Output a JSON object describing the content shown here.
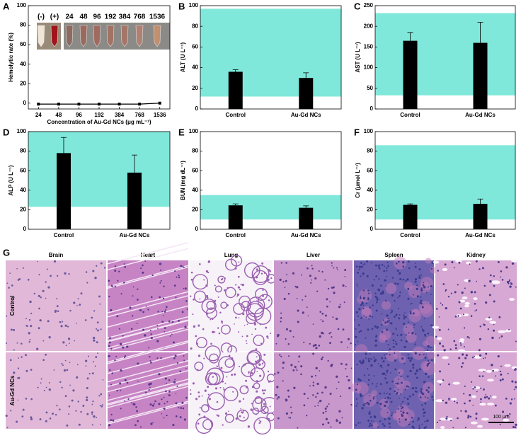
{
  "chart_data": [
    {
      "panel": "A",
      "type": "line",
      "ylabel": "Hemolytic rate (%)",
      "xlabel": "Concentration of Au-Gd NCs (μg mL⁻¹)",
      "categories": [
        "24",
        "48",
        "96",
        "192",
        "384",
        "768",
        "1536"
      ],
      "values": [
        -1,
        -1,
        -1,
        -1,
        -1,
        -1,
        0
      ],
      "color": "#000000",
      "ylim": [
        -6,
        100
      ],
      "yticks": [
        0,
        20,
        40,
        60,
        80,
        100
      ],
      "inset_labels": [
        "(-)",
        "(+)",
        "24",
        "48",
        "96",
        "192",
        "384",
        "768",
        "1536"
      ]
    },
    {
      "panel": "B",
      "type": "bar",
      "ylabel": "ALT (U L⁻¹)",
      "categories": [
        "Control",
        "Au-Gd NCs"
      ],
      "values": [
        36,
        30
      ],
      "errors": [
        2,
        5
      ],
      "reference_range": [
        12,
        97
      ],
      "color": "#000000",
      "band_color": "#7fe8da",
      "ylim": [
        0,
        100
      ],
      "yticks": [
        0,
        20,
        40,
        60,
        80,
        100
      ]
    },
    {
      "panel": "C",
      "type": "bar",
      "ylabel": "AST (U L⁻¹)",
      "categories": [
        "Control",
        "Au-Gd NCs"
      ],
      "values": [
        165,
        160
      ],
      "errors": [
        20,
        50
      ],
      "reference_range": [
        33,
        232
      ],
      "color": "#000000",
      "band_color": "#7fe8da",
      "ylim": [
        0,
        250
      ],
      "yticks": [
        0,
        50,
        100,
        150,
        200,
        250
      ]
    },
    {
      "panel": "D",
      "type": "bar",
      "ylabel": "ALP (U L⁻¹)",
      "categories": [
        "Control",
        "Au-Gd NCs"
      ],
      "values": [
        78,
        58
      ],
      "errors": [
        16,
        18
      ],
      "reference_range": [
        23,
        100
      ],
      "color": "#000000",
      "band_color": "#7fe8da",
      "ylim": [
        0,
        100
      ],
      "yticks": [
        0,
        20,
        40,
        60,
        80,
        100
      ]
    },
    {
      "panel": "E",
      "type": "bar",
      "ylabel": "BUN (mg dL⁻¹)",
      "categories": [
        "Control",
        "Au-Gd NCs"
      ],
      "values": [
        24.5,
        22
      ],
      "errors": [
        1.5,
        2
      ],
      "reference_range": [
        10,
        35
      ],
      "color": "#000000",
      "band_color": "#7fe8da",
      "ylim": [
        0,
        100
      ],
      "yticks": [
        0,
        20,
        40,
        60,
        80,
        100
      ]
    },
    {
      "panel": "F",
      "type": "bar",
      "ylabel": "Cr (μmol L⁻¹)",
      "categories": [
        "Control",
        "Au-Gd NCs"
      ],
      "values": [
        25,
        26
      ],
      "errors": [
        1,
        5
      ],
      "reference_range": [
        10,
        86
      ],
      "color": "#000000",
      "band_color": "#7fe8da",
      "ylim": [
        0,
        100
      ],
      "yticks": [
        0,
        20,
        40,
        60,
        80,
        100
      ]
    }
  ],
  "histology": {
    "panel": "G",
    "columns": [
      "Brain",
      "Heart",
      "Lung",
      "Liver",
      "Spleen",
      "Kidney"
    ],
    "rows": [
      "Control",
      "Au-Gd NCs"
    ],
    "scale_bar": "100 μm"
  }
}
